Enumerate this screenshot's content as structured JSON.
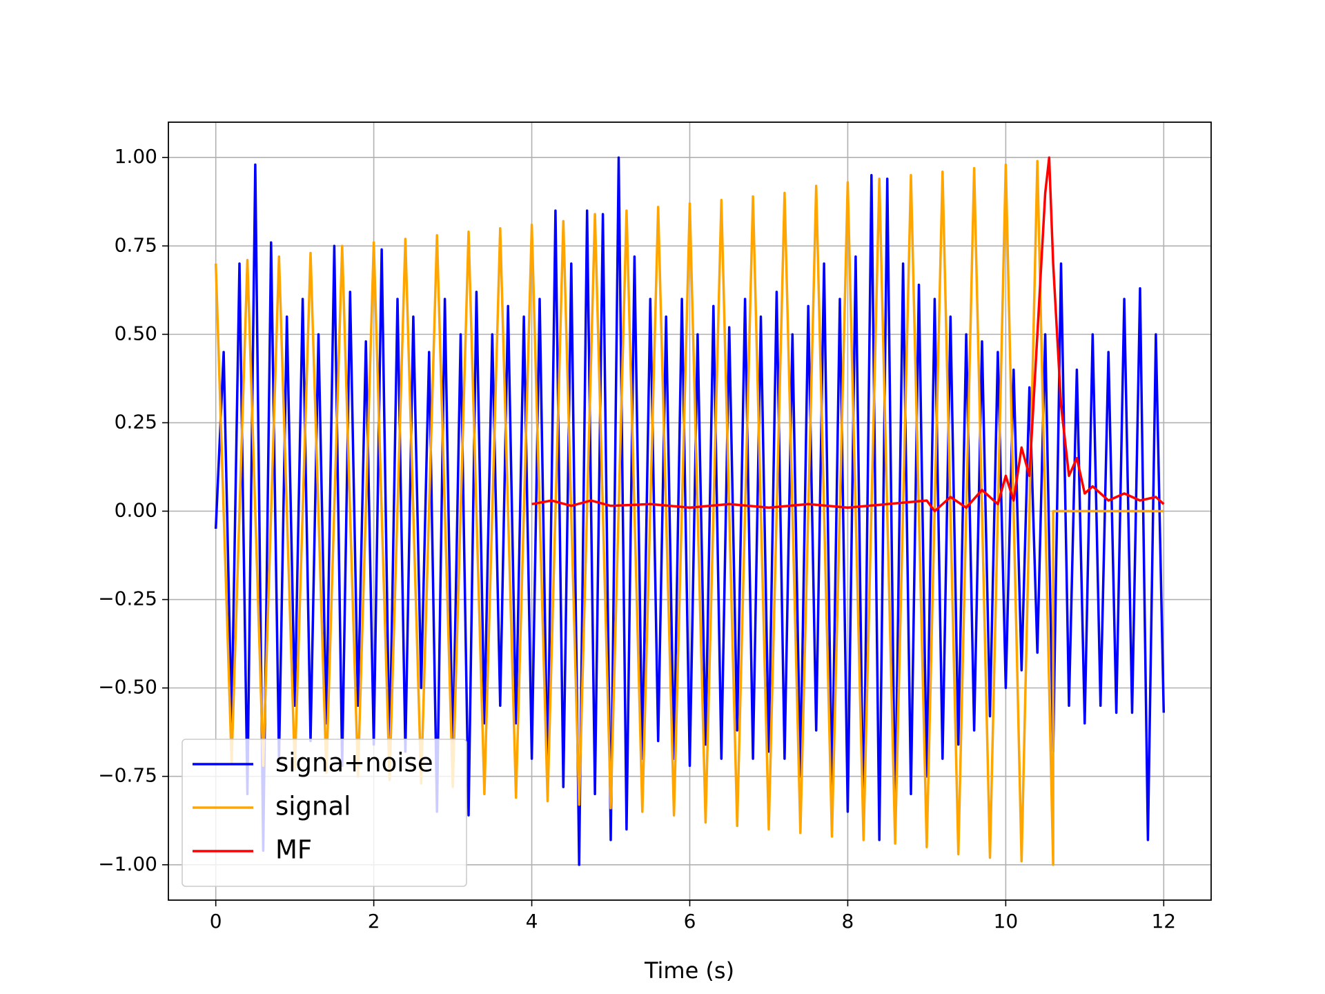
{
  "chart_data": {
    "type": "line",
    "xlabel": "Time (s)",
    "xlim": [
      -0.6,
      12.6
    ],
    "ylim": [
      -1.1,
      1.1
    ],
    "xticks": [
      0,
      2,
      4,
      6,
      8,
      10,
      12
    ],
    "yticks": [
      {
        "value": -1.0,
        "label": "−1.00"
      },
      {
        "value": -0.75,
        "label": "−0.75"
      },
      {
        "value": -0.5,
        "label": "−0.50"
      },
      {
        "value": -0.25,
        "label": "−0.25"
      },
      {
        "value": 0.0,
        "label": "0.00"
      },
      {
        "value": 0.25,
        "label": "0.25"
      },
      {
        "value": 0.5,
        "label": "0.50"
      },
      {
        "value": 0.75,
        "label": "0.75"
      },
      {
        "value": 1.0,
        "label": "1.00"
      }
    ],
    "grid": true,
    "legend": "lower left",
    "series": [
      {
        "name": "signa+noise",
        "color": "#0000ff",
        "x": [
          0,
          0.1,
          0.2,
          0.3,
          0.4,
          0.5,
          0.6,
          0.7,
          0.8,
          0.9,
          1,
          1.1,
          1.2,
          1.3,
          1.4,
          1.5,
          1.6,
          1.7,
          1.8,
          1.9,
          2,
          2.1,
          2.2,
          2.3,
          2.4,
          2.5,
          2.6,
          2.7,
          2.8,
          2.9,
          3,
          3.1,
          3.2,
          3.3,
          3.4,
          3.5,
          3.6,
          3.7,
          3.8,
          3.9,
          4,
          4.1,
          4.2,
          4.3,
          4.4,
          4.5,
          4.6,
          4.7,
          4.8,
          4.9,
          5,
          5.1,
          5.2,
          5.3,
          5.4,
          5.5,
          5.6,
          5.7,
          5.8,
          5.9,
          6,
          6.1,
          6.2,
          6.3,
          6.4,
          6.5,
          6.6,
          6.7,
          6.8,
          6.9,
          7,
          7.1,
          7.2,
          7.3,
          7.4,
          7.5,
          7.6,
          7.7,
          7.8,
          7.9,
          8,
          8.1,
          8.2,
          8.3,
          8.4,
          8.5,
          8.6,
          8.7,
          8.8,
          8.9,
          9,
          9.1,
          9.2,
          9.3,
          9.4,
          9.5,
          9.6,
          9.7,
          9.8,
          9.9,
          10,
          10.1,
          10.2,
          10.3,
          10.4,
          10.5,
          10.6,
          10.7,
          10.8,
          10.9,
          11,
          11.1,
          11.2,
          11.3,
          11.4,
          11.5,
          11.6,
          11.7,
          11.8,
          11.9,
          12
        ],
        "values": [
          -0.05,
          0.45,
          -0.6,
          0.7,
          -0.8,
          0.98,
          -0.96,
          0.76,
          -0.7,
          0.55,
          -0.55,
          0.6,
          -0.65,
          0.5,
          -0.6,
          0.75,
          -0.72,
          0.62,
          -0.55,
          0.48,
          -0.66,
          0.74,
          -0.7,
          0.6,
          -0.68,
          0.55,
          -0.5,
          0.45,
          -0.85,
          0.6,
          -0.7,
          0.5,
          -0.86,
          0.62,
          -0.6,
          0.5,
          -0.55,
          0.58,
          -0.6,
          0.55,
          -0.7,
          0.6,
          -0.75,
          0.85,
          -0.78,
          0.7,
          -1.0,
          0.85,
          -0.8,
          0.84,
          -0.93,
          1.0,
          -0.9,
          0.72,
          -0.7,
          0.6,
          -0.65,
          0.55,
          -0.7,
          0.6,
          -0.72,
          0.5,
          -0.66,
          0.58,
          -0.7,
          0.52,
          -0.62,
          0.6,
          -0.7,
          0.55,
          -0.68,
          0.62,
          -0.7,
          0.5,
          -0.75,
          0.58,
          -0.62,
          0.7,
          -0.8,
          0.6,
          -0.85,
          0.72,
          -0.9,
          0.95,
          -0.93,
          0.94,
          -0.88,
          0.7,
          -0.8,
          0.64,
          -0.75,
          0.6,
          -0.7,
          0.55,
          -0.66,
          0.5,
          -0.62,
          0.48,
          -0.58,
          0.45,
          -0.5,
          0.4,
          -0.45,
          0.35,
          -0.4,
          0.5,
          -0.68,
          0.7,
          -0.55,
          0.4,
          -0.6,
          0.5,
          -0.55,
          0.45,
          -0.57,
          0.6,
          -0.57,
          0.63,
          -0.93,
          0.5,
          -0.57
        ],
        "legend_label": null
      },
      {
        "name": "signal",
        "color": "#ffa500",
        "x": [
          0,
          0.2,
          0.4,
          0.6,
          0.8,
          1,
          1.2,
          1.4,
          1.6,
          1.8,
          2,
          2.2,
          2.4,
          2.6,
          2.8,
          3,
          3.2,
          3.4,
          3.6,
          3.8,
          4,
          4.2,
          4.4,
          4.6,
          4.8,
          5,
          5.2,
          5.4,
          5.6,
          5.8,
          6,
          6.2,
          6.4,
          6.6,
          6.8,
          7,
          7.2,
          7.4,
          7.6,
          7.8,
          8,
          8.2,
          8.4,
          8.6,
          8.8,
          9,
          9.2,
          9.4,
          9.6,
          9.8,
          10,
          10.2,
          10.4,
          10.6,
          10.6,
          12
        ],
        "values": [
          0.7,
          -0.71,
          0.71,
          -0.72,
          0.72,
          -0.73,
          0.73,
          -0.74,
          0.75,
          -0.75,
          0.76,
          -0.76,
          0.77,
          -0.77,
          0.78,
          -0.78,
          0.79,
          -0.8,
          0.8,
          -0.81,
          0.81,
          -0.82,
          0.82,
          -0.83,
          0.84,
          -0.84,
          0.85,
          -0.85,
          0.86,
          -0.86,
          0.87,
          -0.88,
          0.88,
          -0.89,
          0.89,
          -0.9,
          0.9,
          -0.91,
          0.92,
          -0.92,
          0.93,
          -0.93,
          0.94,
          -0.94,
          0.95,
          -0.95,
          0.96,
          -0.97,
          0.97,
          -0.98,
          0.98,
          -0.99,
          0.99,
          -1.0,
          0,
          0
        ]
      },
      {
        "name": "MF",
        "color": "#ff0000",
        "x": [
          4,
          4.25,
          4.5,
          4.75,
          5,
          5.5,
          6,
          6.5,
          7,
          7.5,
          8,
          8.5,
          9,
          9.1,
          9.3,
          9.5,
          9.7,
          9.9,
          10,
          10.1,
          10.2,
          10.3,
          10.4,
          10.5,
          10.55,
          10.6,
          10.7,
          10.8,
          10.9,
          11,
          11.1,
          11.3,
          11.5,
          11.7,
          11.9,
          12
        ],
        "values": [
          0.02,
          0.03,
          0.015,
          0.03,
          0.015,
          0.02,
          0.01,
          0.02,
          0.01,
          0.02,
          0.01,
          0.02,
          0.03,
          0.0,
          0.04,
          0.01,
          0.06,
          0.02,
          0.1,
          0.03,
          0.18,
          0.1,
          0.5,
          0.9,
          1.0,
          0.7,
          0.3,
          0.1,
          0.15,
          0.05,
          0.07,
          0.03,
          0.05,
          0.03,
          0.04,
          0.02
        ]
      }
    ]
  }
}
